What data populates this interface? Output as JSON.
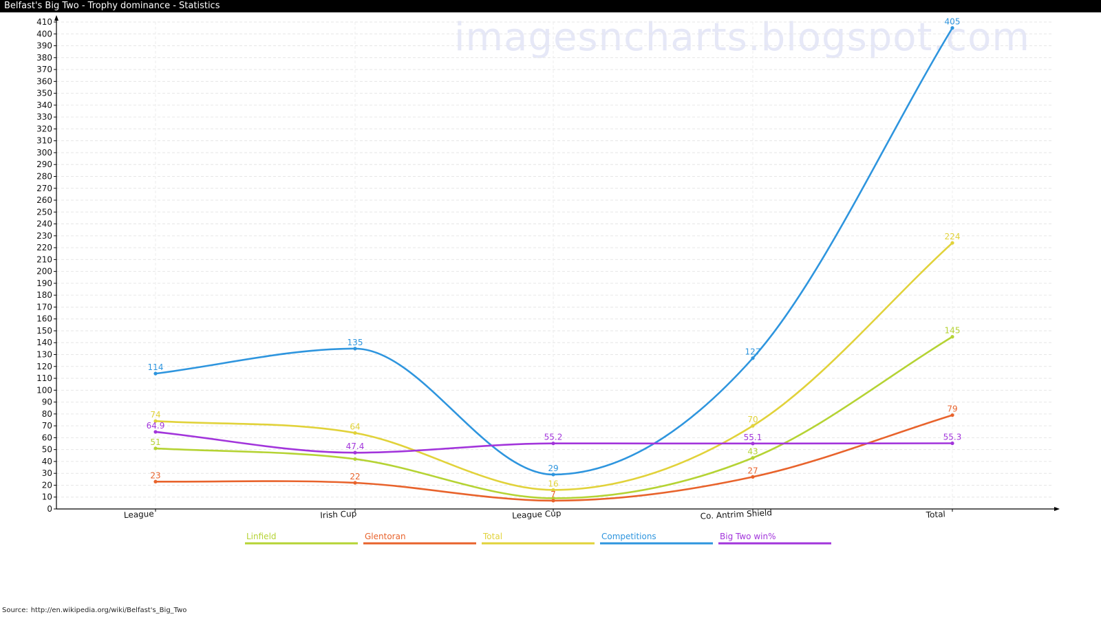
{
  "window": {
    "title": "Belfast's Big Two - Trophy dominance - Statistics"
  },
  "watermark": "imagesncharts.blogspot.com",
  "source": {
    "label": "Source:",
    "url": "http://en.wikipedia.org/wiki/Belfast's_Big_Two"
  },
  "chart_data": {
    "type": "line",
    "title": "",
    "xlabel": "",
    "ylabel": "",
    "categories": [
      "League",
      "Irish Cup",
      "League Cup",
      "Co. Antrim Shield",
      "Total"
    ],
    "ylim": [
      0,
      410
    ],
    "ytick_step": 10,
    "grid": true,
    "legend_position": "bottom",
    "series": [
      {
        "name": "Linfield",
        "color": "#b5d334",
        "values": [
          51,
          42,
          9,
          43,
          145
        ],
        "labels": [
          "51",
          "",
          "",
          "43",
          "145"
        ]
      },
      {
        "name": "Glentoran",
        "color": "#e8632c",
        "values": [
          23,
          22,
          7,
          27,
          79
        ],
        "labels": [
          "23",
          "22",
          "7",
          "27",
          "79"
        ]
      },
      {
        "name": "Total",
        "color": "#e1d23a",
        "values": [
          74,
          64,
          16,
          70,
          224
        ],
        "labels": [
          "74",
          "64",
          "16",
          "70",
          "224"
        ]
      },
      {
        "name": "Competitions",
        "color": "#2e95de",
        "values": [
          114,
          135,
          29,
          127,
          405
        ],
        "labels": [
          "114",
          "135",
          "29",
          "127",
          "405"
        ]
      },
      {
        "name": "Big Two win%",
        "color": "#a235db",
        "values": [
          64.9,
          47.4,
          55.2,
          55.1,
          55.3
        ],
        "labels": [
          "64.9",
          "47.4",
          "55.2",
          "55.1",
          "55.3"
        ]
      }
    ]
  }
}
